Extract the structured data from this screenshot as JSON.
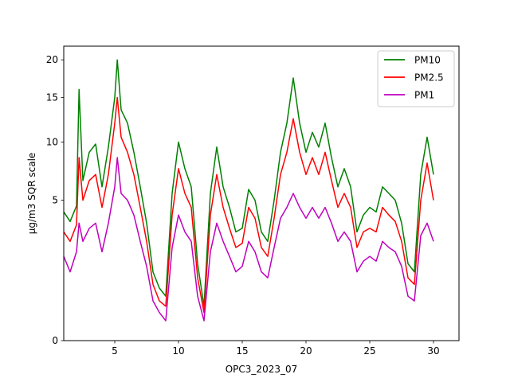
{
  "chart_data": {
    "type": "line",
    "title": "",
    "xlabel": "OPC3_2023_07",
    "ylabel": "µg/m3 SQR scale",
    "xlim": [
      1,
      32
    ],
    "ylim_display_sqrt": [
      0,
      4.69
    ],
    "y_scale": "sqrt",
    "x_ticks": [
      5,
      10,
      15,
      20,
      25,
      30
    ],
    "y_ticks": [
      0,
      5,
      10,
      15,
      20
    ],
    "grid": false,
    "legend_position": "top-right",
    "colors": {
      "PM10": "#008000",
      "PM2.5": "#ff0000",
      "PM1": "#bf00bf"
    },
    "x": [
      1.0,
      1.5,
      2.0,
      2.2,
      2.5,
      3.0,
      3.5,
      4.0,
      4.5,
      5.0,
      5.2,
      5.5,
      6.0,
      6.5,
      7.0,
      7.5,
      8.0,
      8.5,
      9.0,
      9.5,
      10.0,
      10.5,
      11.0,
      11.5,
      12.0,
      12.5,
      13.0,
      13.5,
      14.0,
      14.5,
      15.0,
      15.5,
      16.0,
      16.5,
      17.0,
      17.5,
      18.0,
      18.5,
      19.0,
      19.5,
      20.0,
      20.5,
      21.0,
      21.5,
      22.0,
      22.5,
      23.0,
      23.5,
      24.0,
      24.5,
      25.0,
      25.5,
      26.0,
      26.5,
      27.0,
      27.5,
      28.0,
      28.5,
      29.0,
      29.5,
      30.0
    ],
    "series": [
      {
        "name": "PM10",
        "values": [
          4.2,
          3.6,
          4.6,
          16.0,
          6.5,
          9.0,
          9.8,
          6.0,
          9.5,
          15.0,
          20.0,
          13.5,
          12.0,
          9.0,
          6.0,
          3.5,
          1.2,
          0.7,
          0.5,
          5.5,
          10.0,
          7.5,
          6.0,
          1.5,
          0.3,
          5.5,
          9.5,
          6.0,
          4.5,
          3.0,
          3.2,
          5.8,
          5.0,
          3.0,
          2.5,
          5.0,
          9.0,
          12.0,
          17.5,
          12.0,
          9.0,
          11.0,
          9.5,
          12.0,
          8.5,
          6.0,
          7.5,
          6.0,
          3.0,
          4.0,
          4.5,
          4.2,
          6.0,
          5.5,
          5.0,
          3.5,
          1.5,
          1.2,
          7.0,
          10.5,
          7.0
        ]
      },
      {
        "name": "PM2.5",
        "values": [
          3.0,
          2.5,
          3.4,
          8.5,
          5.0,
          6.5,
          7.0,
          4.5,
          7.0,
          12.0,
          15.0,
          10.5,
          9.0,
          7.0,
          4.5,
          2.5,
          0.8,
          0.4,
          0.3,
          4.0,
          7.5,
          5.5,
          4.5,
          1.0,
          0.2,
          4.0,
          7.0,
          4.5,
          3.2,
          2.2,
          2.4,
          4.5,
          3.8,
          2.2,
          1.8,
          3.8,
          7.0,
          9.0,
          12.5,
          9.0,
          7.0,
          8.5,
          7.0,
          9.0,
          6.5,
          4.5,
          5.5,
          4.5,
          2.2,
          3.0,
          3.2,
          3.0,
          4.5,
          4.0,
          3.6,
          2.5,
          1.0,
          0.8,
          5.0,
          8.0,
          5.0
        ]
      },
      {
        "name": "PM1",
        "values": [
          1.8,
          1.2,
          2.0,
          3.5,
          2.5,
          3.2,
          3.5,
          2.0,
          3.5,
          6.0,
          8.5,
          5.5,
          5.0,
          4.0,
          2.5,
          1.4,
          0.4,
          0.2,
          0.1,
          2.2,
          4.0,
          3.0,
          2.5,
          0.5,
          0.1,
          2.0,
          3.5,
          2.5,
          1.8,
          1.2,
          1.4,
          2.5,
          2.0,
          1.2,
          1.0,
          2.2,
          3.8,
          4.5,
          5.5,
          4.5,
          3.8,
          4.5,
          3.8,
          4.5,
          3.5,
          2.5,
          3.0,
          2.5,
          1.2,
          1.6,
          1.8,
          1.6,
          2.5,
          2.2,
          2.0,
          1.4,
          0.5,
          0.4,
          2.8,
          3.5,
          2.5
        ]
      }
    ]
  }
}
